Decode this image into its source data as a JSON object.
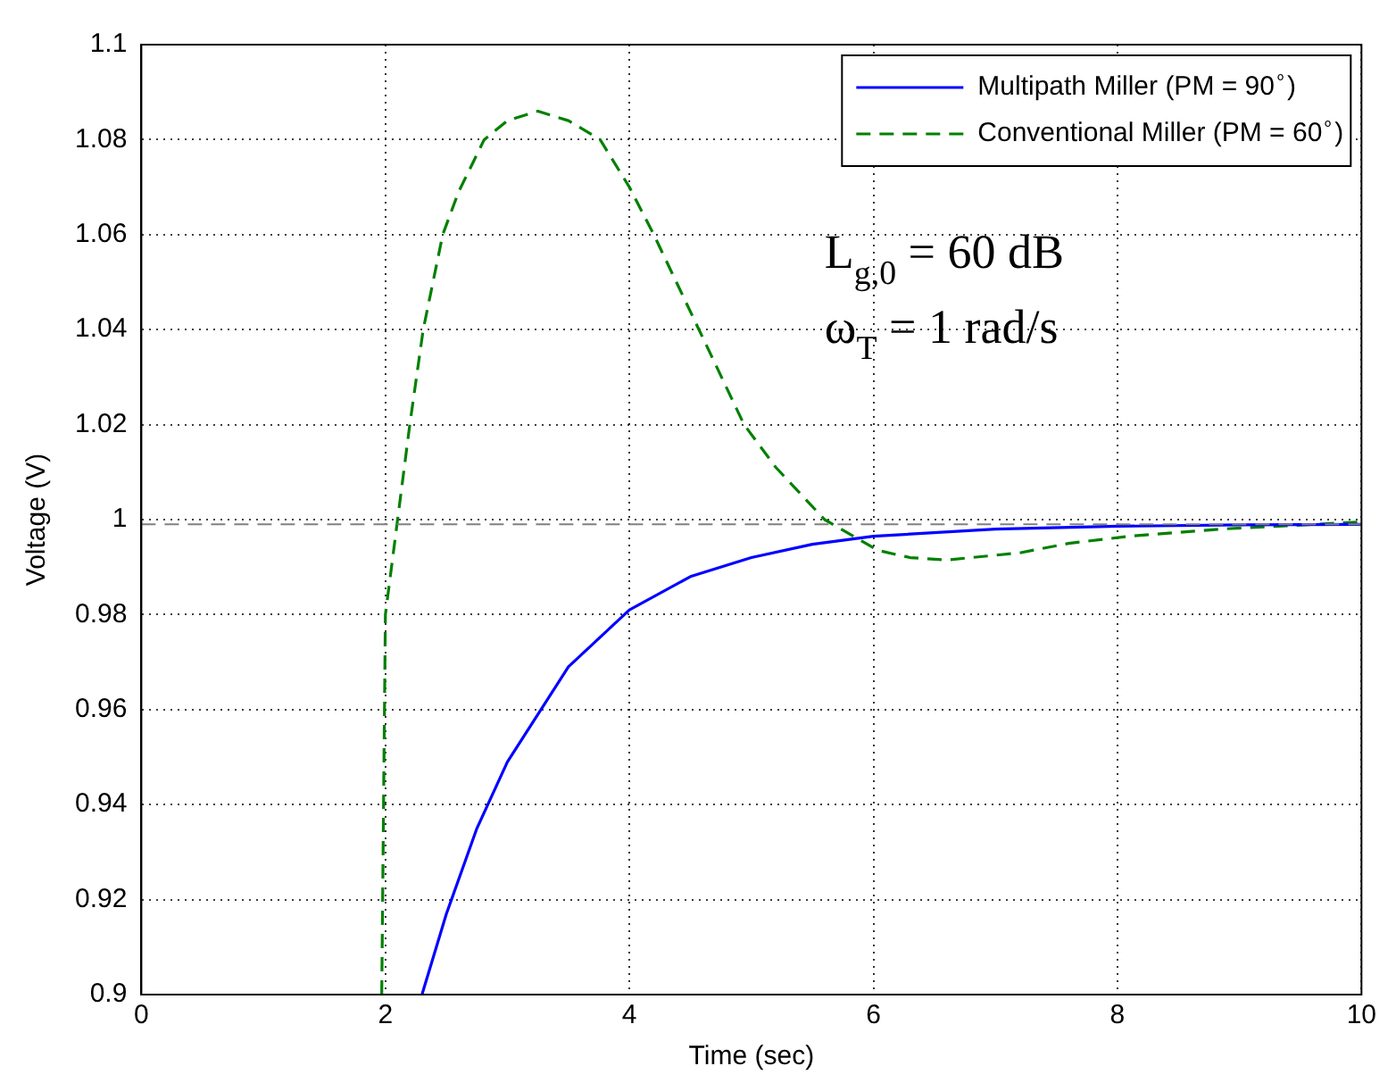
{
  "chart_data": {
    "type": "line",
    "xlabel": "Time (sec)",
    "ylabel": "Voltage (V)",
    "xlim": [
      0,
      10
    ],
    "xticks": [
      0,
      2,
      4,
      6,
      8,
      10
    ],
    "ylim": [
      0.9,
      1.1
    ],
    "yticks": [
      0.9,
      0.92,
      0.94,
      0.96,
      0.98,
      1,
      1.02,
      1.04,
      1.06,
      1.08,
      1.1
    ],
    "grid": true,
    "legend": "top right",
    "series": [
      {
        "name": "Multipath Miller (PM = 90$^{∘}$)",
        "color": "#0000ff",
        "line_style": "solid",
        "x": [
          2.3,
          2.5,
          2.75,
          3,
          3.5,
          4,
          4.5,
          5,
          5.5,
          6,
          7,
          8,
          9,
          10
        ],
        "values": [
          0.9,
          0.917,
          0.935,
          0.949,
          0.969,
          0.981,
          0.988,
          0.992,
          0.9948,
          0.9965,
          0.998,
          0.9986,
          0.9989,
          0.999
        ]
      },
      {
        "name": "Conventional Miller (PM = 60$^{∘}$)",
        "color": "#008000",
        "line_style": "dashed",
        "x": [
          1.97,
          2.0,
          2.1,
          2.2,
          2.31,
          2.47,
          2.6,
          2.81,
          3.0,
          3.25,
          3.5,
          3.76,
          4.0,
          4.2,
          4.57,
          4.94,
          5.2,
          5.6,
          6.04,
          6.3,
          6.6,
          7.2,
          7.6,
          8.1,
          8.84,
          10
        ],
        "values": [
          0.9,
          0.98,
          1.0,
          1.02,
          1.04,
          1.06,
          1.069,
          1.08,
          1.084,
          1.086,
          1.084,
          1.08,
          1.07,
          1.06,
          1.04,
          1.02,
          1.011,
          1.0,
          0.9935,
          0.992,
          0.9915,
          0.993,
          0.995,
          0.9965,
          0.998,
          0.9995
        ]
      }
    ],
    "ref_lines": [
      {
        "axis": "y",
        "value": 0.999,
        "color": "#808080",
        "line_style": "dashed"
      }
    ],
    "annotations": [
      "L$_{g,0}$ = 60 dB",
      "ω$_{T}$ = 1 rad/s"
    ]
  }
}
